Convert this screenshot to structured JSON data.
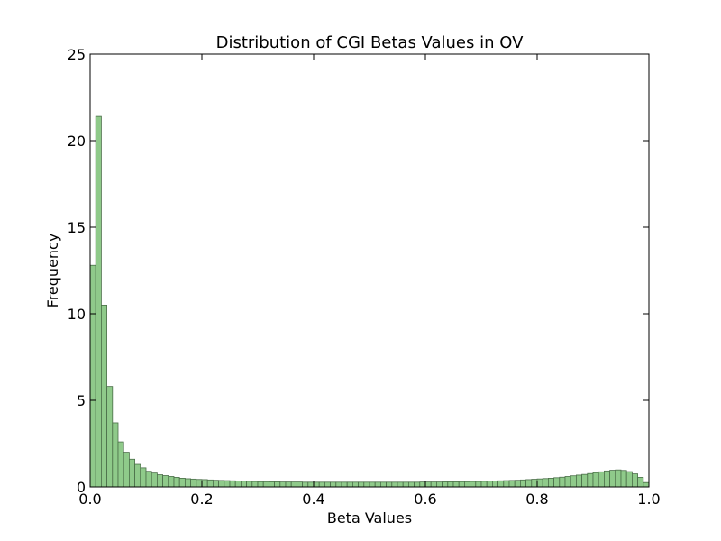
{
  "chart_data": {
    "type": "bar",
    "title": "Distribution of CGI Betas Values in OV",
    "xlabel": "Beta Values",
    "ylabel": "Frequency",
    "xlim": [
      0,
      1
    ],
    "ylim": [
      0,
      25
    ],
    "grid": false,
    "bar_color": "#8fca8a",
    "bar_edge_color": "#4a6e48",
    "xticks": [
      {
        "value": 0.0,
        "label": "0.0"
      },
      {
        "value": 0.2,
        "label": "0.2"
      },
      {
        "value": 0.4,
        "label": "0.4"
      },
      {
        "value": 0.6,
        "label": "0.6"
      },
      {
        "value": 0.8,
        "label": "0.8"
      },
      {
        "value": 1.0,
        "label": "1.0"
      }
    ],
    "yticks": [
      {
        "value": 0,
        "label": "0"
      },
      {
        "value": 5,
        "label": "5"
      },
      {
        "value": 10,
        "label": "10"
      },
      {
        "value": 15,
        "label": "15"
      },
      {
        "value": 20,
        "label": "20"
      },
      {
        "value": 25,
        "label": "25"
      }
    ],
    "bin_width": 0.01,
    "bin_starts": [
      0.0,
      0.01,
      0.02,
      0.03,
      0.04,
      0.05,
      0.06,
      0.07,
      0.08,
      0.09,
      0.1,
      0.11,
      0.12,
      0.13,
      0.14,
      0.15,
      0.16,
      0.17,
      0.18,
      0.19,
      0.2,
      0.21,
      0.22,
      0.23,
      0.24,
      0.25,
      0.26,
      0.27,
      0.28,
      0.29,
      0.3,
      0.31,
      0.32,
      0.33,
      0.34,
      0.35,
      0.36,
      0.37,
      0.38,
      0.39,
      0.4,
      0.41,
      0.42,
      0.43,
      0.44,
      0.45,
      0.46,
      0.47,
      0.48,
      0.49,
      0.5,
      0.51,
      0.52,
      0.53,
      0.54,
      0.55,
      0.56,
      0.57,
      0.58,
      0.59,
      0.6,
      0.61,
      0.62,
      0.63,
      0.64,
      0.65,
      0.66,
      0.67,
      0.68,
      0.69,
      0.7,
      0.71,
      0.72,
      0.73,
      0.74,
      0.75,
      0.76,
      0.77,
      0.78,
      0.79,
      0.8,
      0.81,
      0.82,
      0.83,
      0.84,
      0.85,
      0.86,
      0.87,
      0.88,
      0.89,
      0.9,
      0.91,
      0.92,
      0.93,
      0.94,
      0.95,
      0.96,
      0.97,
      0.98,
      0.99
    ],
    "values": [
      12.8,
      21.4,
      10.5,
      5.8,
      3.7,
      2.6,
      2.0,
      1.6,
      1.3,
      1.1,
      0.9,
      0.8,
      0.7,
      0.65,
      0.6,
      0.55,
      0.5,
      0.47,
      0.45,
      0.43,
      0.42,
      0.4,
      0.38,
      0.37,
      0.36,
      0.35,
      0.34,
      0.33,
      0.32,
      0.31,
      0.3,
      0.3,
      0.29,
      0.29,
      0.28,
      0.28,
      0.28,
      0.28,
      0.27,
      0.27,
      0.27,
      0.27,
      0.27,
      0.27,
      0.27,
      0.27,
      0.27,
      0.27,
      0.27,
      0.27,
      0.27,
      0.27,
      0.27,
      0.27,
      0.27,
      0.27,
      0.27,
      0.27,
      0.27,
      0.28,
      0.28,
      0.28,
      0.28,
      0.29,
      0.29,
      0.29,
      0.3,
      0.3,
      0.31,
      0.31,
      0.32,
      0.33,
      0.34,
      0.35,
      0.36,
      0.37,
      0.38,
      0.4,
      0.42,
      0.44,
      0.46,
      0.48,
      0.5,
      0.53,
      0.56,
      0.6,
      0.64,
      0.68,
      0.72,
      0.77,
      0.82,
      0.87,
      0.92,
      0.96,
      0.98,
      0.95,
      0.88,
      0.75,
      0.55,
      0.25
    ]
  }
}
